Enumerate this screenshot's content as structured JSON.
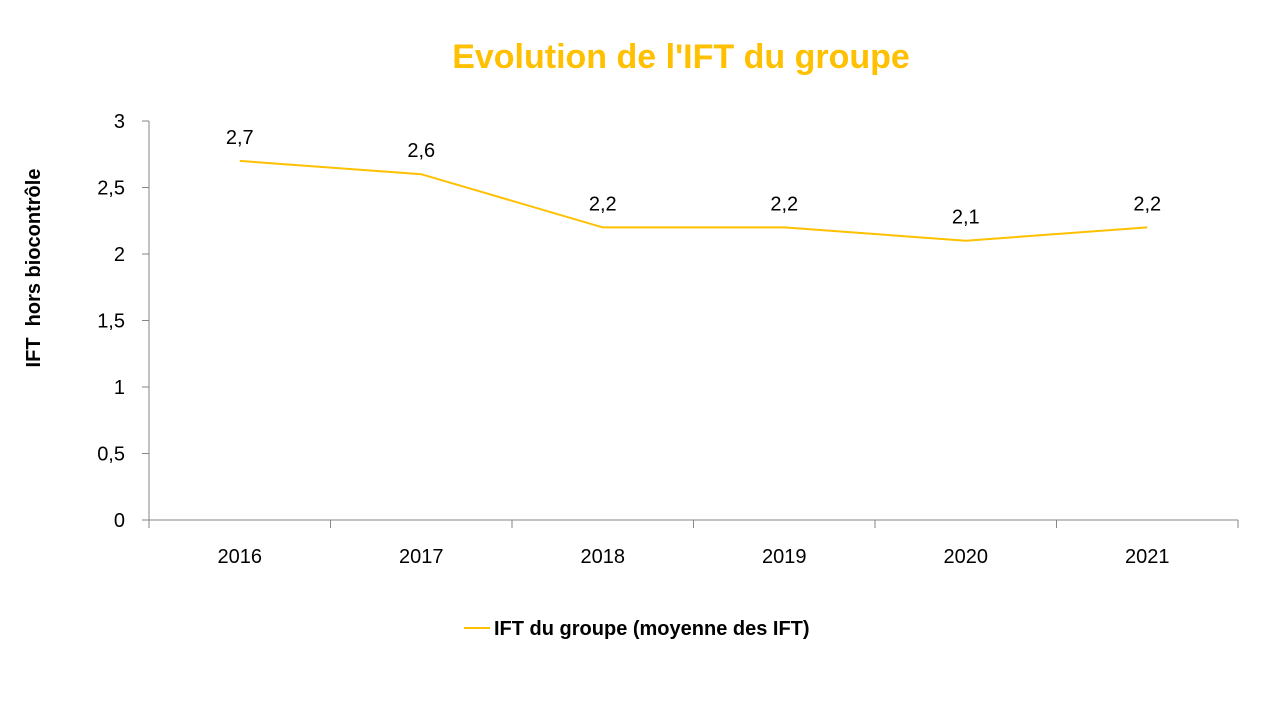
{
  "chart_data": {
    "type": "line",
    "title": "Evolution de l'IFT du groupe",
    "xlabel": "",
    "ylabel": "IFT  hors biocontrôle",
    "categories": [
      "2016",
      "2017",
      "2018",
      "2019",
      "2020",
      "2021"
    ],
    "series": [
      {
        "name": "IFT du groupe (moyenne des IFT)",
        "values": [
          2.7,
          2.6,
          2.2,
          2.2,
          2.1,
          2.2
        ],
        "labels": [
          "2,7",
          "2,6",
          "2,2",
          "2,2",
          "2,1",
          "2,2"
        ],
        "color": "#FFC000"
      }
    ],
    "ylim": [
      0,
      3
    ],
    "yticks": [
      0,
      0.5,
      1,
      1.5,
      2,
      2.5,
      3
    ],
    "ytick_labels": [
      "0",
      "0,5",
      "1",
      "1,5",
      "2",
      "2,5",
      "3"
    ],
    "grid": false,
    "legend": "bottom"
  }
}
